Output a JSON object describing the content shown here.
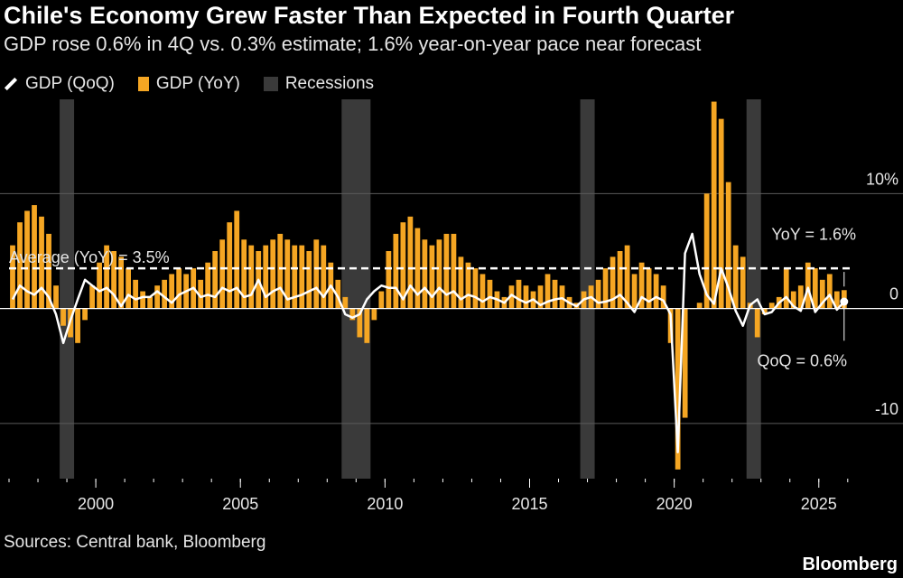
{
  "title": "Chile's Economy Grew Faster Than Expected in Fourth Quarter",
  "subtitle": "GDP rose 0.6% in 4Q vs. 0.3% estimate; 1.6% year-on-year pace near forecast",
  "legend": {
    "qoq": "GDP (QoQ)",
    "yoy": "GDP (YoY)",
    "recessions": "Recessions"
  },
  "source": "Sources: Central bank, Bloomberg",
  "brand": "Bloomberg",
  "colors": {
    "yoy": "#f5a623",
    "qoq": "#ffffff",
    "recession": "#3a3a3a",
    "background": "#000000"
  },
  "chart_data": {
    "type": "bar",
    "x_start": 1997.0,
    "x_step": 0.25,
    "xlim": [
      1997.0,
      2026.1
    ],
    "ylim": [
      -14.8,
      18.2
    ],
    "ytick_labels": [
      "10%",
      "0",
      "-10"
    ],
    "ytick_values": [
      10,
      0,
      -10
    ],
    "xtick_labels": [
      "2000",
      "2005",
      "2010",
      "2015",
      "2020",
      "2025"
    ],
    "xtick_values": [
      2000,
      2005,
      2010,
      2015,
      2020,
      2025
    ],
    "grid": true,
    "legend_position": "top-left",
    "recessions": [
      [
        1998.75,
        1999.25
      ],
      [
        2008.5,
        2009.5
      ],
      [
        2016.75,
        2017.25
      ],
      [
        2022.5,
        2023.0
      ]
    ],
    "average_yoy": 3.5,
    "average_label": "Average (YoY) = 3.5%",
    "annotations": {
      "yoy": "YoY = 1.6%",
      "qoq": "QoQ = 0.6%"
    },
    "series": [
      {
        "name": "GDP (YoY)",
        "type": "bar",
        "values": [
          5.5,
          7.5,
          8.5,
          9.0,
          8.0,
          6.5,
          2.0,
          -1.5,
          -2.5,
          -3.0,
          -1.0,
          2.0,
          4.0,
          5.5,
          5.0,
          4.5,
          3.5,
          2.5,
          1.5,
          1.0,
          2.0,
          2.5,
          3.0,
          3.5,
          3.0,
          3.5,
          2.5,
          4.0,
          5.0,
          6.0,
          7.5,
          8.5,
          6.0,
          5.5,
          5.0,
          5.5,
          6.0,
          6.5,
          6.0,
          5.5,
          5.5,
          5.0,
          6.0,
          5.5,
          4.0,
          2.5,
          1.0,
          -1.0,
          -2.5,
          -3.0,
          -1.0,
          1.5,
          5.0,
          6.5,
          7.5,
          8.0,
          7.0,
          6.0,
          5.5,
          6.0,
          6.5,
          6.5,
          4.5,
          4.0,
          3.5,
          3.0,
          2.5,
          1.5,
          1.0,
          2.0,
          2.5,
          2.0,
          1.5,
          2.0,
          3.0,
          2.5,
          2.0,
          1.0,
          0.5,
          1.5,
          2.0,
          2.5,
          3.5,
          4.5,
          5.0,
          5.5,
          3.0,
          4.0,
          3.5,
          3.0,
          2.0,
          -3.0,
          -14.0,
          -9.5,
          0.0,
          0.5,
          10.0,
          18.0,
          16.5,
          11.0,
          5.5,
          4.5,
          0.5,
          -2.5,
          -0.5,
          0.5,
          1.0,
          3.5,
          1.5,
          2.0,
          4.0,
          3.5,
          2.5,
          3.0,
          1.5,
          1.6
        ]
      },
      {
        "name": "GDP (QoQ)",
        "type": "line",
        "values": [
          0.8,
          2.0,
          1.5,
          1.2,
          1.8,
          1.0,
          -0.5,
          -3.0,
          -1.0,
          0.8,
          2.5,
          2.0,
          1.5,
          1.8,
          1.2,
          0.2,
          1.2,
          0.8,
          1.0,
          1.0,
          1.5,
          1.0,
          0.5,
          1.2,
          1.5,
          1.8,
          1.0,
          1.2,
          1.0,
          1.8,
          1.5,
          1.8,
          1.0,
          1.2,
          2.5,
          1.0,
          1.5,
          1.8,
          0.8,
          1.0,
          1.2,
          1.5,
          1.8,
          1.0,
          2.0,
          1.0,
          -0.5,
          -0.8,
          -0.5,
          0.8,
          1.5,
          2.0,
          1.8,
          1.8,
          0.8,
          2.0,
          1.2,
          1.8,
          1.0,
          1.8,
          1.2,
          1.5,
          0.8,
          1.2,
          1.0,
          0.6,
          1.0,
          0.8,
          0.5,
          1.2,
          0.8,
          0.5,
          0.8,
          0.3,
          0.6,
          0.8,
          0.9,
          0.5,
          0.2,
          0.8,
          1.0,
          0.5,
          0.6,
          0.8,
          1.2,
          0.5,
          -0.3,
          1.0,
          0.6,
          1.0,
          0.7,
          -0.5,
          -12.5,
          4.8,
          6.5,
          3.0,
          1.2,
          0.4,
          3.5,
          1.8,
          -0.2,
          -1.5,
          0.3,
          0.8,
          -0.5,
          -0.3,
          0.5,
          1.0,
          0.2,
          -0.2,
          1.8,
          -0.3,
          0.5,
          1.2,
          -0.1,
          0.6
        ]
      }
    ]
  }
}
